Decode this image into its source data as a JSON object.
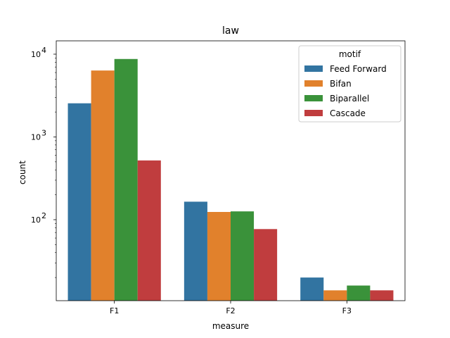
{
  "chart_data": {
    "type": "bar",
    "title": "law",
    "xlabel": "measure",
    "ylabel": "count",
    "yscale": "log",
    "ylim": [
      10.5,
      14500
    ],
    "categories": [
      "F1",
      "F2",
      "F3"
    ],
    "y_ticks": [
      {
        "value": 100,
        "base": "10",
        "exp": "2"
      },
      {
        "value": 1000,
        "base": "10",
        "exp": "3"
      },
      {
        "value": 10000,
        "base": "10",
        "exp": "4"
      }
    ],
    "legend": {
      "title": "motif",
      "position": "top-right"
    },
    "series": [
      {
        "name": "Feed Forward",
        "color": "#3274a1",
        "values": [
          2550,
          165,
          20
        ]
      },
      {
        "name": "Bifan",
        "color": "#e1812c",
        "values": [
          6350,
          124,
          14
        ]
      },
      {
        "name": "Biparallel",
        "color": "#3a923a",
        "values": [
          8750,
          126,
          16
        ]
      },
      {
        "name": "Cascade",
        "color": "#c03d3e",
        "values": [
          520,
          77,
          14
        ]
      }
    ]
  }
}
